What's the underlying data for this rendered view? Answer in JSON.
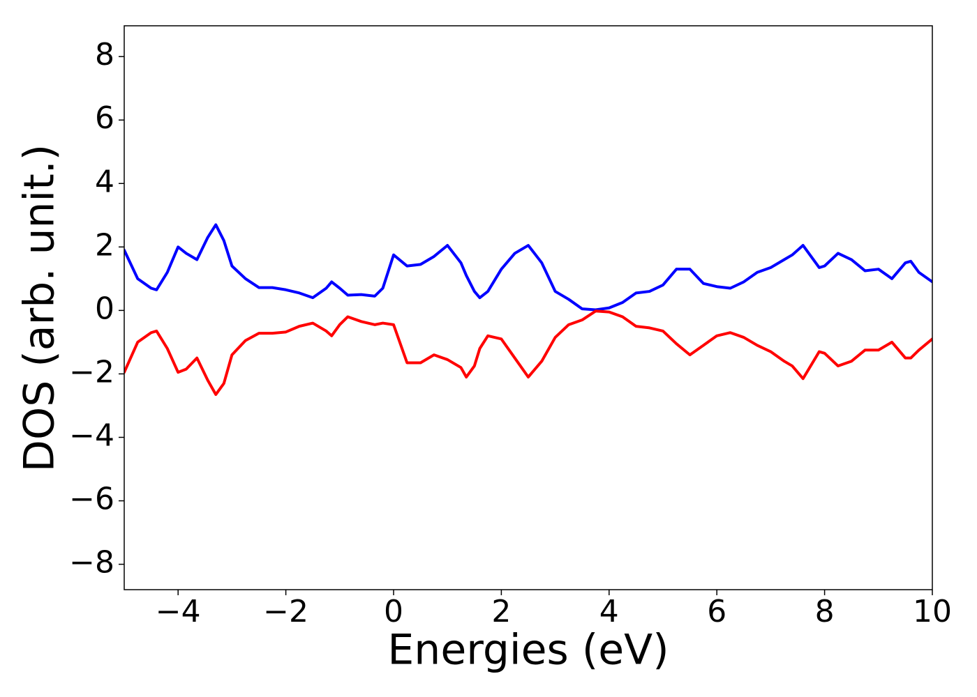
{
  "chart_data": {
    "type": "line",
    "xlabel": "Energies (eV)",
    "ylabel": "DOS (arb. unit.)",
    "x": [
      -5,
      -4.75,
      -4.5,
      -4.4,
      -4.2,
      -4,
      -3.85,
      -3.65,
      -3.45,
      -3.3,
      -3.15,
      -3,
      -2.75,
      -2.5,
      -2.25,
      -2,
      -1.75,
      -1.5,
      -1.25,
      -1.15,
      -1,
      -0.85,
      -0.6,
      -0.35,
      -0.2,
      0,
      0.25,
      0.5,
      0.75,
      1,
      1.25,
      1.35,
      1.5,
      1.6,
      1.75,
      2,
      2.25,
      2.5,
      2.75,
      3,
      3.25,
      3.5,
      3.75,
      4,
      4.25,
      4.5,
      4.75,
      5,
      5.25,
      5.5,
      5.75,
      6,
      6.25,
      6.5,
      6.75,
      7,
      7.25,
      7.4,
      7.6,
      7.9,
      8,
      8.25,
      8.5,
      8.75,
      9,
      9.25,
      9.5,
      9.6,
      9.75,
      10
    ],
    "series": [
      {
        "color": "#0000ff",
        "values": [
          1.9,
          1.0,
          0.7,
          0.65,
          1.2,
          2.0,
          1.8,
          1.6,
          2.3,
          2.7,
          2.2,
          1.4,
          1.0,
          0.72,
          0.72,
          0.65,
          0.55,
          0.4,
          0.7,
          0.9,
          0.7,
          0.48,
          0.5,
          0.45,
          0.7,
          1.75,
          1.4,
          1.45,
          1.7,
          2.05,
          1.5,
          1.1,
          0.6,
          0.4,
          0.6,
          1.3,
          1.8,
          2.05,
          1.5,
          0.6,
          0.35,
          0.05,
          0.02,
          0.08,
          0.25,
          0.55,
          0.6,
          0.8,
          1.3,
          1.3,
          0.85,
          0.75,
          0.7,
          0.9,
          1.2,
          1.35,
          1.6,
          1.75,
          2.05,
          1.35,
          1.4,
          1.8,
          1.6,
          1.25,
          1.3,
          1.0,
          1.5,
          1.55,
          1.2,
          0.9
        ]
      },
      {
        "color": "#ff0000",
        "values": [
          -1.95,
          -1.0,
          -0.7,
          -0.65,
          -1.2,
          -1.95,
          -1.85,
          -1.5,
          -2.2,
          -2.65,
          -2.3,
          -1.4,
          -0.95,
          -0.72,
          -0.72,
          -0.68,
          -0.5,
          -0.4,
          -0.65,
          -0.8,
          -0.45,
          -0.2,
          -0.35,
          -0.45,
          -0.4,
          -0.45,
          -1.65,
          -1.65,
          -1.4,
          -1.55,
          -1.8,
          -2.1,
          -1.75,
          -1.2,
          -0.8,
          -0.9,
          -1.5,
          -2.1,
          -1.6,
          -0.85,
          -0.45,
          -0.3,
          -0.02,
          -0.05,
          -0.2,
          -0.5,
          -0.55,
          -0.65,
          -1.05,
          -1.4,
          -1.1,
          -0.8,
          -0.7,
          -0.85,
          -1.1,
          -1.3,
          -1.6,
          -1.75,
          -2.15,
          -1.3,
          -1.35,
          -1.75,
          -1.6,
          -1.25,
          -1.25,
          -1.0,
          -1.5,
          -1.5,
          -1.25,
          -0.9
        ]
      }
    ],
    "xlim": [
      -5,
      10
    ],
    "xticks": [
      {
        "value": -4,
        "label": "−4"
      },
      {
        "value": -2,
        "label": "−2"
      },
      0,
      2,
      4,
      6,
      8,
      10
    ],
    "ylim": [
      -8.8,
      8.97
    ],
    "yticks": [
      {
        "value": -8,
        "label": "−8"
      },
      {
        "value": -6,
        "label": "−6"
      },
      {
        "value": -4,
        "label": "−4"
      },
      {
        "value": -2,
        "label": "−2"
      },
      0,
      2,
      4,
      6,
      8
    ]
  }
}
